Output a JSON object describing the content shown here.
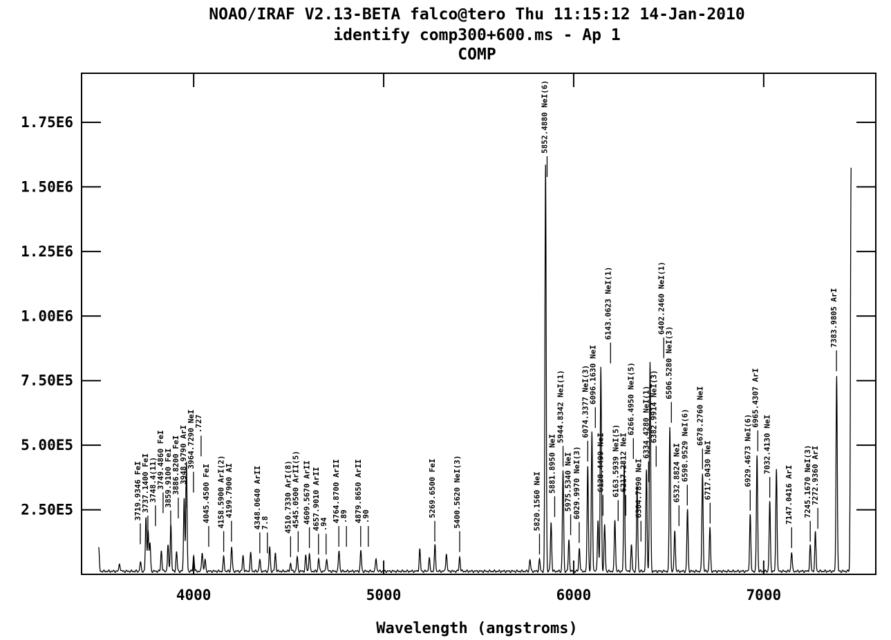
{
  "header": {
    "line1": "NOAO/IRAF V2.13-BETA falco@tero Thu 11:15:12 14-Jan-2010",
    "line2": "identify comp300+600.ms - Ap 1",
    "line3": "COMP"
  },
  "chart_data": {
    "type": "line",
    "title": "identify comp300+600.ms - Ap 1",
    "subtitle": "COMP",
    "xlabel": "Wavelength (angstroms)",
    "ylabel": "",
    "xlim": [
      3410,
      7590
    ],
    "ylim": [
      0,
      1940000.0
    ],
    "x_ticks": [
      4000,
      5000,
      6000,
      7000
    ],
    "x_tick_labels": [
      "4000",
      "5000",
      "6000",
      "7000"
    ],
    "y_ticks": [
      250000,
      500000,
      750000,
      1000000,
      1250000,
      1500000,
      1750000
    ],
    "y_tick_labels": [
      "2.50E5",
      "5.00E5",
      "7.50E5",
      "1.00E6",
      "1.25E6",
      "1.50E6",
      "1.75E6"
    ],
    "continuum_level": 12000,
    "x_range": [
      3500,
      7460
    ],
    "series": [
      {
        "peaks": [
          {
            "x": 3500,
            "y": 90000
          },
          {
            "x": 3610,
            "y": 30000
          },
          {
            "x": 3720,
            "y": 35000
          },
          {
            "x": 3749,
            "y": 205000
          },
          {
            "x": 3760,
            "y": 160000
          },
          {
            "x": 3770,
            "y": 110000
          },
          {
            "x": 3830,
            "y": 80000
          },
          {
            "x": 3865,
            "y": 100000
          },
          {
            "x": 3880,
            "y": 180000
          },
          {
            "x": 3910,
            "y": 75000
          },
          {
            "x": 3950,
            "y": 285000
          },
          {
            "x": 3962,
            "y": 420000
          },
          {
            "x": 4000,
            "y": 60000
          },
          {
            "x": 4045,
            "y": 75000
          },
          {
            "x": 4060,
            "y": 45000
          },
          {
            "x": 4158,
            "y": 55000
          },
          {
            "x": 4200,
            "y": 95000
          },
          {
            "x": 4260,
            "y": 60000
          },
          {
            "x": 4300,
            "y": 70000
          },
          {
            "x": 4348,
            "y": 45000
          },
          {
            "x": 4400,
            "y": 95000
          },
          {
            "x": 4430,
            "y": 70000
          },
          {
            "x": 4510,
            "y": 30000
          },
          {
            "x": 4545,
            "y": 55000
          },
          {
            "x": 4590,
            "y": 60000
          },
          {
            "x": 4609,
            "y": 70000
          },
          {
            "x": 4658,
            "y": 50000
          },
          {
            "x": 4700,
            "y": 50000
          },
          {
            "x": 4765,
            "y": 80000
          },
          {
            "x": 4880,
            "y": 80000
          },
          {
            "x": 4960,
            "y": 50000
          },
          {
            "x": 5190,
            "y": 85000
          },
          {
            "x": 5240,
            "y": 50000
          },
          {
            "x": 5270,
            "y": 100000
          },
          {
            "x": 5330,
            "y": 70000
          },
          {
            "x": 5400,
            "y": 55000
          },
          {
            "x": 5770,
            "y": 45000
          },
          {
            "x": 5820,
            "y": 45000
          },
          {
            "x": 5852,
            "y": 1575000
          },
          {
            "x": 5881,
            "y": 190000
          },
          {
            "x": 5944,
            "y": 390000
          },
          {
            "x": 5975,
            "y": 120000
          },
          {
            "x": 6030,
            "y": 90000
          },
          {
            "x": 6074,
            "y": 410000
          },
          {
            "x": 6096,
            "y": 540000
          },
          {
            "x": 6128,
            "y": 200000
          },
          {
            "x": 6143,
            "y": 790000
          },
          {
            "x": 6163,
            "y": 180000
          },
          {
            "x": 6217,
            "y": 200000
          },
          {
            "x": 6266,
            "y": 420000
          },
          {
            "x": 6304,
            "y": 100000
          },
          {
            "x": 6334,
            "y": 330000
          },
          {
            "x": 6383,
            "y": 390000
          },
          {
            "x": 6402,
            "y": 810000
          },
          {
            "x": 6506,
            "y": 560000
          },
          {
            "x": 6532,
            "y": 160000
          },
          {
            "x": 6599,
            "y": 240000
          },
          {
            "x": 6678,
            "y": 380000
          },
          {
            "x": 6717,
            "y": 170000
          },
          {
            "x": 6929,
            "y": 220000
          },
          {
            "x": 6965,
            "y": 450000
          },
          {
            "x": 7032,
            "y": 270000
          },
          {
            "x": 7067,
            "y": 400000
          },
          {
            "x": 7147,
            "y": 75000
          },
          {
            "x": 7245,
            "y": 100000
          },
          {
            "x": 7272,
            "y": 150000
          },
          {
            "x": 7384,
            "y": 760000
          },
          {
            "x": 7460,
            "y": 1565000
          }
        ]
      }
    ],
    "annotations": [
      {
        "x": 3719,
        "y": 90000,
        "label": "3719.9346 FeI"
      },
      {
        "x": 3737,
        "y": 120000,
        "label": "3737.1400 FeI"
      },
      {
        "x": 3748,
        "y": 160000,
        "label": "3748.4(11)"
      },
      {
        "x": 3749,
        "y": 210000,
        "label": "3749.4860 FeI"
      },
      {
        "x": 3859,
        "y": 140000,
        "label": "3859.9100 FeI"
      },
      {
        "x": 3886,
        "y": 190000,
        "label": "3886.8200 FeI"
      },
      {
        "x": 3948,
        "y": 230000,
        "label": "3948.9790 ArI"
      },
      {
        "x": 3964,
        "y": 290000,
        "label": "3964.7290 NeI"
      },
      {
        "x": 3964,
        "y": 430000,
        "label": ".727"
      },
      {
        "x": 4045,
        "y": 80000,
        "label": "4045.4500 FeI"
      },
      {
        "x": 4158,
        "y": 60000,
        "label": "4158.5900 ArI(2)"
      },
      {
        "x": 4199,
        "y": 100000,
        "label": "4199.7900 AI"
      },
      {
        "x": 4348,
        "y": 55000,
        "label": "4348.0640 ArII"
      },
      {
        "x": 4348,
        "y": 55000,
        "label": "7.8"
      },
      {
        "x": 4510,
        "y": 40000,
        "label": "4510.7330 ArI(8)"
      },
      {
        "x": 4545,
        "y": 60000,
        "label": "4545.0500 ArII(5)"
      },
      {
        "x": 4609,
        "y": 75000,
        "label": "4609.5670 ArII"
      },
      {
        "x": 4657,
        "y": 50000,
        "label": "4657.9010 ArII"
      },
      {
        "x": 4657,
        "y": 50000,
        "label": ".94"
      },
      {
        "x": 4764,
        "y": 80000,
        "label": "4764.8700 ArII"
      },
      {
        "x": 4764,
        "y": 80000,
        "label": ".89"
      },
      {
        "x": 4879,
        "y": 80000,
        "label": "4879.8650 ArII"
      },
      {
        "x": 4879,
        "y": 80000,
        "label": ".90"
      },
      {
        "x": 5269,
        "y": 100000,
        "label": "5269.6500 FeI"
      },
      {
        "x": 5400,
        "y": 60000,
        "label": "5400.5620 NeI(3)"
      },
      {
        "x": 5820,
        "y": 50000,
        "label": "5820.1560 NeI"
      },
      {
        "x": 5852,
        "y": 1575000,
        "label": "5852.4880 NeI(6)"
      },
      {
        "x": 5881,
        "y": 195000,
        "label": "5881.8950 NeI"
      },
      {
        "x": 5944,
        "y": 390000,
        "label": "5944.8342 NeI(1)"
      },
      {
        "x": 5975,
        "y": 125000,
        "label": "5975.5340 NeI"
      },
      {
        "x": 6029,
        "y": 95000,
        "label": "6029.9970 NeI(3)"
      },
      {
        "x": 6074,
        "y": 410000,
        "label": "6074.3377 NeI(3)"
      },
      {
        "x": 6096,
        "y": 540000,
        "label": "6096.1630 NeI"
      },
      {
        "x": 6128,
        "y": 200000,
        "label": "6128.4499 NeI"
      },
      {
        "x": 6143,
        "y": 790000,
        "label": "6143.0623 NeI(1)"
      },
      {
        "x": 6163,
        "y": 180000,
        "label": "6163.5939 NeI(5)"
      },
      {
        "x": 6217,
        "y": 200000,
        "label": "6217.2812 NeI"
      },
      {
        "x": 6266,
        "y": 420000,
        "label": "6266.4950 NeI(5)"
      },
      {
        "x": 6304,
        "y": 100000,
        "label": "6304.7890 NeI"
      },
      {
        "x": 6334,
        "y": 330000,
        "label": "6334.4280 NeI(1)"
      },
      {
        "x": 6382,
        "y": 390000,
        "label": "6382.9914 NeI(3)"
      },
      {
        "x": 6402,
        "y": 810000,
        "label": "6402.2460 NeI(1)"
      },
      {
        "x": 6506,
        "y": 560000,
        "label": "6506.5280 NeI(3)"
      },
      {
        "x": 6532,
        "y": 160000,
        "label": "6532.8824 NeI"
      },
      {
        "x": 6598,
        "y": 240000,
        "label": "6598.9529 NeI(6)"
      },
      {
        "x": 6678,
        "y": 380000,
        "label": "6678.2760 NeI"
      },
      {
        "x": 6717,
        "y": 170000,
        "label": "6717.0430 NeI"
      },
      {
        "x": 6929,
        "y": 220000,
        "label": "6929.4673 NeI(6)"
      },
      {
        "x": 6965,
        "y": 450000,
        "label": "6965.4307 ArI"
      },
      {
        "x": 7032,
        "y": 270000,
        "label": "7032.4130 NeI"
      },
      {
        "x": 7147,
        "y": 75000,
        "label": "7147.0416 ArI"
      },
      {
        "x": 7245,
        "y": 100000,
        "label": "7245.1670 NeI(3)"
      },
      {
        "x": 7272,
        "y": 150000,
        "label": "7272.9360 ArI"
      },
      {
        "x": 7383,
        "y": 760000,
        "label": "7383.9805 ArI"
      }
    ]
  }
}
